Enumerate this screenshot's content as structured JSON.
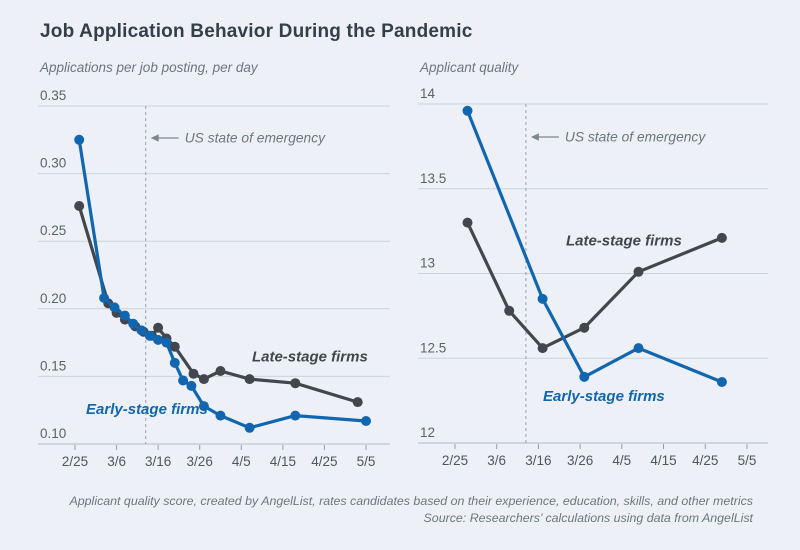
{
  "title": "Job Application Behavior During the Pandemic",
  "footer": {
    "note": "Applicant quality score, created by AngelList, rates candidates based on their experience, education, skills, and other metrics",
    "source": "Source: Researchers’ calculations using data from AngelList"
  },
  "colors": {
    "background": "#edf1f7",
    "early_stage_blue": "#1166af",
    "late_stage_dark": "#42474d",
    "gridline": "#cbd3dc",
    "baseline": "#b3bcc6",
    "title_text": "#353f4a",
    "muted_text": "#6c7680"
  },
  "chart_data": [
    {
      "type": "line",
      "panel": "left",
      "axis_title": "Applications per job posting, per day",
      "x_tick_labels": [
        "2/25",
        "3/6",
        "3/16",
        "3/26",
        "4/5",
        "4/15",
        "4/25",
        "5/5"
      ],
      "x_tick_days": [
        0,
        10,
        20,
        30,
        40,
        50,
        60,
        70
      ],
      "xlim_days": [
        0,
        70
      ],
      "ylim": [
        0.1,
        0.35
      ],
      "y_ticks": [
        {
          "value": 0.1,
          "label": "0.10"
        },
        {
          "value": 0.15,
          "label": "0.15"
        },
        {
          "value": 0.2,
          "label": "0.20"
        },
        {
          "value": 0.25,
          "label": "0.25"
        },
        {
          "value": 0.3,
          "label": "0.30"
        },
        {
          "value": 0.35,
          "label": "0.35"
        }
      ],
      "grid": true,
      "annotation": {
        "text": "US state of emergency",
        "day": 17
      },
      "series": [
        {
          "name": "Late-stage firms",
          "color": "#42474d",
          "label_day": 56.5,
          "label_value": 0.164,
          "points": [
            [
              1,
              0.276
            ],
            [
              8,
              0.204
            ],
            [
              10,
              0.197
            ],
            [
              12,
              0.192
            ],
            [
              14.5,
              0.187
            ],
            [
              16.5,
              0.183
            ],
            [
              18.5,
              0.18
            ],
            [
              20,
              0.186
            ],
            [
              22,
              0.178
            ],
            [
              24,
              0.172
            ],
            [
              28.5,
              0.152
            ],
            [
              31,
              0.148
            ],
            [
              35,
              0.154
            ],
            [
              42,
              0.148
            ],
            [
              53,
              0.145
            ],
            [
              68,
              0.131
            ]
          ]
        },
        {
          "name": "Early-stage firms",
          "color": "#1166af",
          "label_day": 17.3,
          "label_value": 0.125,
          "points": [
            [
              1,
              0.325
            ],
            [
              7,
              0.208
            ],
            [
              9.5,
              0.201
            ],
            [
              12,
              0.195
            ],
            [
              14,
              0.189
            ],
            [
              16,
              0.184
            ],
            [
              18,
              0.18
            ],
            [
              20,
              0.177
            ],
            [
              22,
              0.175
            ],
            [
              24,
              0.16
            ],
            [
              26,
              0.147
            ],
            [
              28,
              0.143
            ],
            [
              31,
              0.128
            ],
            [
              35,
              0.121
            ],
            [
              42,
              0.112
            ],
            [
              53,
              0.121
            ],
            [
              70,
              0.117
            ]
          ]
        }
      ]
    },
    {
      "type": "line",
      "panel": "right",
      "axis_title": "Applicant quality",
      "x_tick_labels": [
        "2/25",
        "3/6",
        "3/16",
        "3/26",
        "4/5",
        "4/15",
        "4/25",
        "5/5"
      ],
      "x_tick_days": [
        0,
        10,
        20,
        30,
        40,
        50,
        60,
        70
      ],
      "xlim_days": [
        0,
        70
      ],
      "ylim": [
        12,
        14
      ],
      "y_ticks": [
        {
          "value": 12,
          "label": "12"
        },
        {
          "value": 12.5,
          "label": "12.5"
        },
        {
          "value": 13,
          "label": "13"
        },
        {
          "value": 13.5,
          "label": "13.5"
        },
        {
          "value": 14,
          "label": "14"
        }
      ],
      "grid": true,
      "annotation": {
        "text": "US state of emergency",
        "day": 17
      },
      "series": [
        {
          "name": "Late-stage firms",
          "color": "#42474d",
          "label_day": 40.5,
          "label_value": 13.19,
          "points": [
            [
              3,
              13.3
            ],
            [
              13,
              12.78
            ],
            [
              21,
              12.56
            ],
            [
              31,
              12.68
            ],
            [
              44,
              13.01
            ],
            [
              64,
              13.21
            ]
          ]
        },
        {
          "name": "Early-stage firms",
          "color": "#1166af",
          "label_day": 35.7,
          "label_value": 12.27,
          "points": [
            [
              3,
              13.96
            ],
            [
              21,
              12.85
            ],
            [
              31,
              12.39
            ],
            [
              44,
              12.56
            ],
            [
              64,
              12.36
            ]
          ]
        }
      ]
    }
  ]
}
